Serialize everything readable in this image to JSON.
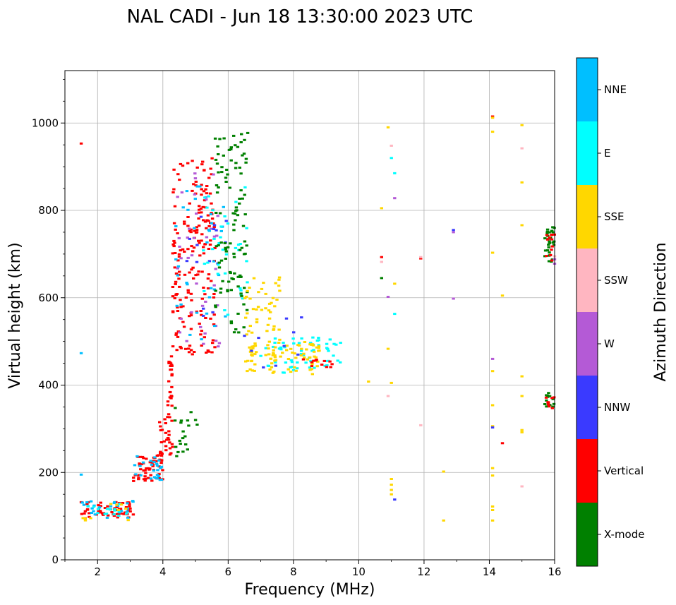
{
  "chart_data": {
    "type": "scatter",
    "title": "NAL CADI - Jun 18 13:30:00 2023 UTC",
    "xlabel": "Frequency (MHz)",
    "ylabel": "Virtual height (km)",
    "colorbar_label": "Azimuth Direction",
    "xlim": [
      1,
      16
    ],
    "ylim": [
      0,
      1120
    ],
    "xticks": [
      2,
      4,
      6,
      8,
      10,
      12,
      14,
      16
    ],
    "yticks": [
      0,
      200,
      400,
      600,
      800,
      1000
    ],
    "grid": true,
    "categories": [
      {
        "name": "X-mode",
        "color": "#008000"
      },
      {
        "name": "Vertical",
        "color": "#ff0000"
      },
      {
        "name": "NNW",
        "color": "#3a3aff"
      },
      {
        "name": "W",
        "color": "#b45ad6"
      },
      {
        "name": "SSW",
        "color": "#ffb6c1"
      },
      {
        "name": "SSE",
        "color": "#ffd700"
      },
      {
        "name": "E",
        "color": "#00ffff"
      },
      {
        "name": "NNE",
        "color": "#00bfff"
      }
    ],
    "clusters": [
      {
        "category": "Vertical",
        "x": [
          1.5,
          3.1
        ],
        "y": [
          95,
          135
        ],
        "n": 60
      },
      {
        "category": "NNE",
        "x": [
          1.5,
          3.1
        ],
        "y": [
          95,
          135
        ],
        "n": 25
      },
      {
        "category": "E",
        "x": [
          1.6,
          3.0
        ],
        "y": [
          100,
          130
        ],
        "n": 15
      },
      {
        "category": "SSE",
        "x": [
          1.5,
          3.0
        ],
        "y": [
          90,
          130
        ],
        "n": 10
      },
      {
        "category": "Vertical",
        "x": [
          3.1,
          4.0
        ],
        "y": [
          180,
          240
        ],
        "n": 55
      },
      {
        "category": "NNE",
        "x": [
          3.1,
          4.0
        ],
        "y": [
          180,
          240
        ],
        "n": 25
      },
      {
        "category": "Vertical",
        "x": [
          3.9,
          4.3
        ],
        "y": [
          240,
          330
        ],
        "n": 30
      },
      {
        "category": "Vertical",
        "x": [
          4.15,
          4.3
        ],
        "y": [
          330,
          470
        ],
        "n": 25
      },
      {
        "category": "X-mode",
        "x": [
          4.3,
          5.1
        ],
        "y": [
          230,
          370
        ],
        "n": 20
      },
      {
        "category": "Vertical",
        "x": [
          4.3,
          5.6
        ],
        "y": [
          470,
          920
        ],
        "n": 190
      },
      {
        "category": "W",
        "x": [
          4.4,
          5.8
        ],
        "y": [
          480,
          900
        ],
        "n": 40
      },
      {
        "category": "NNE",
        "x": [
          4.4,
          6.0
        ],
        "y": [
          500,
          860
        ],
        "n": 35
      },
      {
        "category": "NNW",
        "x": [
          4.6,
          6.0
        ],
        "y": [
          550,
          800
        ],
        "n": 15
      },
      {
        "category": "E",
        "x": [
          5.2,
          6.6
        ],
        "y": [
          560,
          860
        ],
        "n": 35
      },
      {
        "category": "X-mode",
        "x": [
          5.6,
          6.6
        ],
        "y": [
          520,
          980
        ],
        "n": 110
      },
      {
        "category": "SSE",
        "x": [
          6.5,
          7.6
        ],
        "y": [
          430,
          650
        ],
        "n": 70
      },
      {
        "category": "E",
        "x": [
          7.0,
          9.5
        ],
        "y": [
          425,
          510
        ],
        "n": 60
      },
      {
        "category": "SSE",
        "x": [
          7.2,
          8.8
        ],
        "y": [
          425,
          500
        ],
        "n": 60
      },
      {
        "category": "Vertical",
        "x": [
          8.2,
          9.3
        ],
        "y": [
          440,
          460
        ],
        "n": 12
      },
      {
        "category": "NNW",
        "x": [
          6.5,
          8.5
        ],
        "y": [
          440,
          560
        ],
        "n": 10
      },
      {
        "category": "X-mode",
        "x": [
          15.7,
          16.0
        ],
        "y": [
          680,
          770
        ],
        "n": 30
      },
      {
        "category": "Vertical",
        "x": [
          15.7,
          16.0
        ],
        "y": [
          680,
          750
        ],
        "n": 12
      },
      {
        "category": "X-mode",
        "x": [
          15.7,
          16.0
        ],
        "y": [
          350,
          385
        ],
        "n": 12
      },
      {
        "category": "Vertical",
        "x": [
          15.7,
          16.0
        ],
        "y": [
          345,
          375
        ],
        "n": 8
      }
    ],
    "points": [
      {
        "category": "Vertical",
        "x": 1.5,
        "y": 953
      },
      {
        "category": "NNE",
        "x": 1.5,
        "y": 473
      },
      {
        "category": "NNE",
        "x": 1.5,
        "y": 195
      },
      {
        "category": "SSE",
        "x": 10.3,
        "y": 408
      },
      {
        "category": "SSE",
        "x": 10.7,
        "y": 805
      },
      {
        "category": "Vertical",
        "x": 10.7,
        "y": 693
      },
      {
        "category": "SSW",
        "x": 10.7,
        "y": 682
      },
      {
        "category": "X-mode",
        "x": 10.7,
        "y": 645
      },
      {
        "category": "SSE",
        "x": 10.9,
        "y": 990
      },
      {
        "category": "SSW",
        "x": 11.0,
        "y": 948
      },
      {
        "category": "E",
        "x": 11.0,
        "y": 920
      },
      {
        "category": "E",
        "x": 11.1,
        "y": 885
      },
      {
        "category": "W",
        "x": 11.1,
        "y": 828
      },
      {
        "category": "SSE",
        "x": 11.1,
        "y": 632
      },
      {
        "category": "W",
        "x": 10.9,
        "y": 602
      },
      {
        "category": "E",
        "x": 11.1,
        "y": 563
      },
      {
        "category": "SSE",
        "x": 10.9,
        "y": 483
      },
      {
        "category": "SSE",
        "x": 11.0,
        "y": 405
      },
      {
        "category": "SSW",
        "x": 10.9,
        "y": 375
      },
      {
        "category": "SSE",
        "x": 11.0,
        "y": 185
      },
      {
        "category": "SSE",
        "x": 11.0,
        "y": 172
      },
      {
        "category": "SSE",
        "x": 11.0,
        "y": 160
      },
      {
        "category": "SSE",
        "x": 11.0,
        "y": 150
      },
      {
        "category": "NNW",
        "x": 11.1,
        "y": 138
      },
      {
        "category": "Vertical",
        "x": 11.9,
        "y": 690
      },
      {
        "category": "SSW",
        "x": 11.9,
        "y": 693
      },
      {
        "category": "SSW",
        "x": 11.9,
        "y": 308
      },
      {
        "category": "SSE",
        "x": 12.6,
        "y": 202
      },
      {
        "category": "SSE",
        "x": 12.6,
        "y": 90
      },
      {
        "category": "NNW",
        "x": 12.9,
        "y": 755
      },
      {
        "category": "W",
        "x": 12.9,
        "y": 750
      },
      {
        "category": "W",
        "x": 12.9,
        "y": 598
      },
      {
        "category": "Vertical",
        "x": 14.1,
        "y": 1015
      },
      {
        "category": "SSE",
        "x": 14.1,
        "y": 1012
      },
      {
        "category": "SSE",
        "x": 14.1,
        "y": 980
      },
      {
        "category": "SSE",
        "x": 14.1,
        "y": 703
      },
      {
        "category": "W",
        "x": 14.1,
        "y": 460
      },
      {
        "category": "SSE",
        "x": 14.1,
        "y": 432
      },
      {
        "category": "SSE",
        "x": 14.1,
        "y": 354
      },
      {
        "category": "SSE",
        "x": 14.1,
        "y": 306
      },
      {
        "category": "NNW",
        "x": 14.1,
        "y": 303
      },
      {
        "category": "SSE",
        "x": 14.1,
        "y": 210
      },
      {
        "category": "SSE",
        "x": 14.1,
        "y": 193
      },
      {
        "category": "SSE",
        "x": 14.1,
        "y": 122
      },
      {
        "category": "SSE",
        "x": 14.1,
        "y": 114
      },
      {
        "category": "SSE",
        "x": 14.1,
        "y": 90
      },
      {
        "category": "SSE",
        "x": 14.4,
        "y": 605
      },
      {
        "category": "Vertical",
        "x": 14.4,
        "y": 267
      },
      {
        "category": "SSE",
        "x": 15.0,
        "y": 995
      },
      {
        "category": "SSW",
        "x": 15.0,
        "y": 942
      },
      {
        "category": "SSE",
        "x": 15.0,
        "y": 864
      },
      {
        "category": "SSE",
        "x": 15.0,
        "y": 766
      },
      {
        "category": "SSE",
        "x": 15.0,
        "y": 420
      },
      {
        "category": "SSE",
        "x": 15.0,
        "y": 375
      },
      {
        "category": "SSE",
        "x": 15.0,
        "y": 297
      },
      {
        "category": "SSE",
        "x": 15.0,
        "y": 292
      },
      {
        "category": "SSW",
        "x": 15.0,
        "y": 168
      },
      {
        "category": "SSW",
        "x": 16.0,
        "y": 695
      },
      {
        "category": "W",
        "x": 16.0,
        "y": 688
      },
      {
        "category": "W",
        "x": 16.0,
        "y": 678
      }
    ]
  }
}
